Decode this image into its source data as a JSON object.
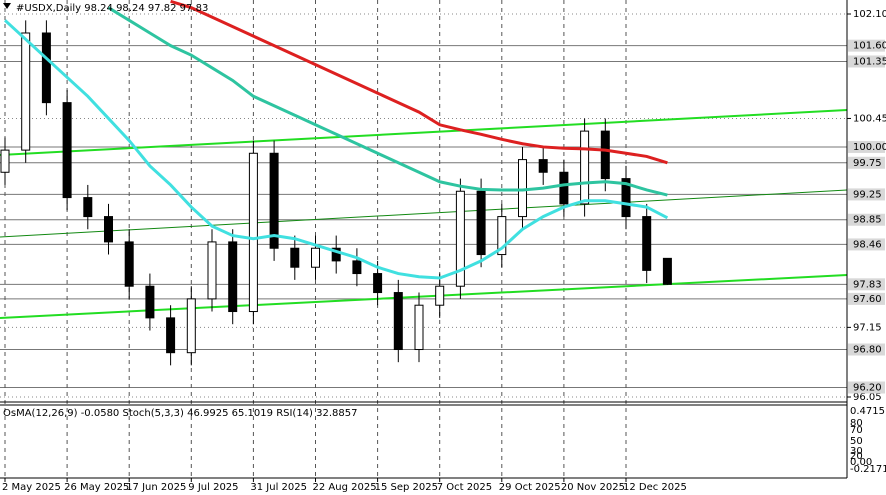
{
  "chart_data": {
    "type": "candlestick",
    "title": "#USDX,Daily  98.24 98.24 97.82 97.83",
    "categories": [
      "2 May 2025",
      null,
      null,
      "26 May 2025",
      null,
      null,
      "17 Jun 2025",
      null,
      null,
      "9 Jul 2025",
      null,
      null,
      "31 Jul 2025",
      null,
      null,
      "22 Aug 2025",
      null,
      null,
      "15 Sep 2025",
      null,
      null,
      "7 Oct 2025",
      null,
      null,
      "29 Oct 2025",
      null,
      null,
      "20 Nov 2025",
      null,
      null,
      "12 Dec 2025",
      null,
      null
    ],
    "open": [
      99.6,
      99.95,
      101.8,
      100.7,
      99.2,
      98.9,
      98.5,
      97.8,
      97.3,
      96.75,
      97.6,
      98.5,
      97.4,
      99.9,
      98.4,
      98.1,
      98.4,
      98.2,
      98.0,
      97.7,
      96.8,
      97.5,
      97.8,
      99.3,
      98.3,
      98.9,
      99.8,
      99.6,
      99.1,
      100.25,
      99.5,
      98.9,
      98.24
    ],
    "high": [
      100.15,
      102.0,
      102.0,
      100.9,
      99.4,
      99.1,
      98.7,
      98.0,
      97.5,
      97.8,
      98.7,
      98.7,
      100.1,
      100.1,
      98.6,
      98.6,
      98.6,
      98.4,
      98.2,
      97.9,
      97.7,
      98.0,
      99.5,
      99.5,
      99.1,
      100.0,
      100.0,
      99.8,
      100.45,
      100.45,
      99.7,
      99.1,
      98.24
    ],
    "low": [
      99.4,
      99.75,
      100.5,
      99.0,
      98.7,
      98.3,
      97.6,
      97.1,
      96.55,
      96.55,
      97.4,
      97.2,
      97.2,
      98.2,
      97.9,
      97.9,
      98.0,
      97.8,
      97.5,
      96.6,
      96.6,
      97.3,
      97.6,
      98.1,
      98.1,
      98.7,
      99.4,
      98.9,
      98.9,
      99.3,
      98.7,
      97.85,
      97.82
    ],
    "close": [
      99.95,
      101.8,
      100.7,
      99.2,
      98.9,
      98.5,
      97.8,
      97.3,
      96.75,
      97.6,
      98.5,
      97.4,
      99.9,
      98.4,
      98.1,
      98.4,
      98.2,
      98.0,
      97.7,
      96.8,
      97.5,
      97.8,
      99.3,
      98.3,
      98.9,
      99.8,
      99.6,
      99.1,
      100.25,
      99.5,
      98.9,
      98.05,
      97.83
    ],
    "series": [
      {
        "color": "#40e0e0",
        "values": [
          102.0,
          101.7,
          101.4,
          101.1,
          100.8,
          100.45,
          100.1,
          99.7,
          99.4,
          99.05,
          98.75,
          98.6,
          98.55,
          98.6,
          98.55,
          98.45,
          98.35,
          98.25,
          98.1,
          98.0,
          97.95,
          97.93,
          98.05,
          98.2,
          98.4,
          98.7,
          98.9,
          99.05,
          99.15,
          99.15,
          99.1,
          99.05,
          98.88
        ]
      },
      {
        "color": "#2ec4a0",
        "values": [
          null,
          null,
          null,
          null,
          null,
          102.2,
          102.0,
          101.8,
          101.6,
          101.45,
          101.25,
          101.05,
          100.8,
          100.65,
          100.5,
          100.35,
          100.2,
          100.05,
          99.9,
          99.75,
          99.6,
          99.45,
          99.38,
          99.33,
          99.32,
          99.32,
          99.35,
          99.4,
          99.43,
          99.45,
          99.42,
          99.32,
          99.24
        ]
      },
      {
        "color": "#dd2020",
        "values": [
          null,
          null,
          null,
          null,
          null,
          null,
          null,
          null,
          102.3,
          102.2,
          102.05,
          101.9,
          101.75,
          101.6,
          101.45,
          101.3,
          101.15,
          101.0,
          100.85,
          100.7,
          100.55,
          100.35,
          100.27,
          100.2,
          100.12,
          100.05,
          100.0,
          99.98,
          99.97,
          99.95,
          99.9,
          99.85,
          99.75
        ]
      }
    ],
    "ylim": [
      96.05,
      102.1
    ],
    "yticks": [
      {
        "value": 102.1,
        "label": "102.10"
      },
      100.45,
      97.15,
      96.05
    ],
    "levels": [
      {
        "value": 101.6,
        "label": "101.60"
      },
      101.35,
      {
        "value": 100.0,
        "label": "100.00"
      },
      99.75,
      99.25,
      98.85,
      98.46,
      97.83,
      {
        "value": 97.6,
        "label": "97.60"
      },
      {
        "value": 96.8,
        "label": "96.80"
      },
      {
        "value": 96.2,
        "label": "96.20"
      }
    ],
    "grid": true,
    "oscillator": {
      "label": "OsMA(12,26,9) -0.0580  Stoch(5,3,3) 46.9925 65.1019  RSI(14) 32.8857",
      "axis_labels": [
        "0.4715",
        "80",
        "70",
        "50",
        "30",
        "20",
        "0.00",
        "-0.2171"
      ]
    }
  }
}
